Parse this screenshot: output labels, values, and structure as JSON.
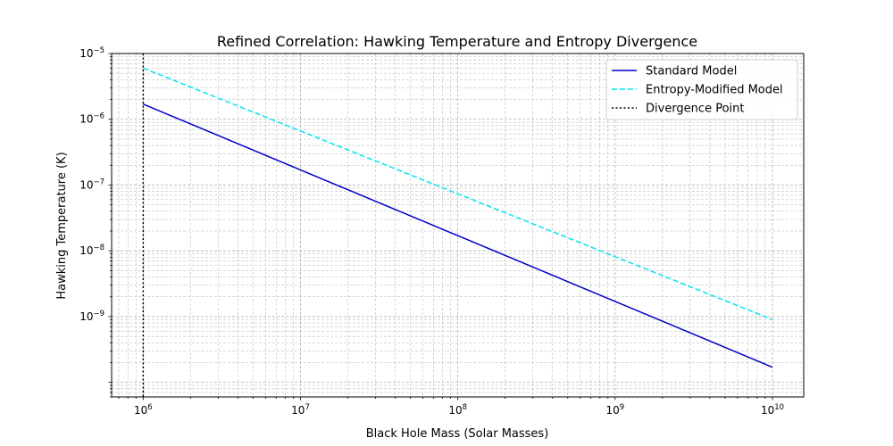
{
  "chart_data": {
    "type": "line",
    "title": "Refined Correlation: Hawking Temperature and Entropy Divergence",
    "xlabel": "Black Hole Mass (Solar Masses)",
    "ylabel": "Hawking Temperature (K)",
    "xscale": "log",
    "yscale": "log",
    "xlim": [
      630000,
      15800000000
    ],
    "ylim": [
      6e-11,
      1e-05
    ],
    "xticks": [
      {
        "base": "10",
        "exp": "6",
        "value": 1000000.0
      },
      {
        "base": "10",
        "exp": "7",
        "value": 10000000.0
      },
      {
        "base": "10",
        "exp": "8",
        "value": 100000000.0
      },
      {
        "base": "10",
        "exp": "9",
        "value": 1000000000.0
      },
      {
        "base": "10",
        "exp": "10",
        "value": 10000000000.0
      }
    ],
    "yticks": [
      {
        "base": "10",
        "exp": "−9",
        "value": 1e-09
      },
      {
        "base": "10",
        "exp": "−8",
        "value": 1e-08
      },
      {
        "base": "10",
        "exp": "−7",
        "value": 1e-07
      },
      {
        "base": "10",
        "exp": "−6",
        "value": 1e-06
      },
      {
        "base": "10",
        "exp": "−5",
        "value": 1e-05
      }
    ],
    "grid": true,
    "legend_position": "top-right",
    "series": [
      {
        "name": "Standard Model",
        "color": "#0000cc",
        "style": "solid",
        "x": [
          1000000.0,
          10000000000.0
        ],
        "y": [
          1.7e-06,
          1.7e-10
        ]
      },
      {
        "name": "Entropy-Modified Model",
        "color": "#00e5ee",
        "style": "dashed",
        "x": [
          1000000.0,
          10000000000.0
        ],
        "y": [
          6e-06,
          9e-10
        ]
      }
    ],
    "vlines": [
      {
        "name": "Divergence Point",
        "x": 1000000.0,
        "color": "#000000",
        "style": "dotted"
      }
    ]
  }
}
